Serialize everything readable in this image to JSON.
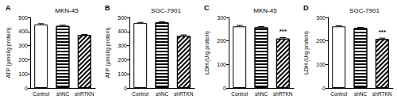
{
  "chart_data": [
    {
      "type": "bar",
      "panel_label": "A",
      "title": "MKN-45",
      "y_label": "ATP (μmol/g protein)",
      "categories": [
        "Control",
        "shNC",
        "shRTKN"
      ],
      "values": [
        450,
        440,
        375
      ],
      "errors": [
        6,
        5,
        4
      ],
      "colors": [
        "#ffffff",
        "#ffffff",
        "#ffffff"
      ],
      "ylim": [
        0,
        500
      ],
      "yticks": [
        0,
        100,
        200,
        300,
        400,
        500
      ],
      "grid": false
    },
    {
      "type": "bar",
      "panel_label": "B",
      "title": "SGC-7901",
      "y_label": "ATP (μmol/g protein)",
      "categories": [
        "Control",
        "shNC",
        "shRTKN"
      ],
      "values": [
        460,
        465,
        370
      ],
      "errors": [
        5,
        5,
        6
      ],
      "colors": [
        "#ffffff",
        "#ffffff",
        "#ffffff"
      ],
      "ylim": [
        0,
        500
      ],
      "yticks": [
        0,
        100,
        200,
        300,
        400,
        500
      ],
      "grid": false
    },
    {
      "type": "bar",
      "panel_label": "C",
      "title": "MKN-45",
      "y_label": "LDH (U/g protein)",
      "categories": [
        "Control",
        "shNC",
        "shRTKN"
      ],
      "values": [
        262,
        258,
        210
      ],
      "errors": [
        4,
        3,
        4
      ],
      "annotations": [
        null,
        null,
        "***"
      ],
      "colors": [
        "#ffffff",
        "#ffffff",
        "#ffffff"
      ],
      "ylim": [
        0,
        300
      ],
      "yticks": [
        0,
        100,
        200,
        300
      ],
      "grid": false
    },
    {
      "type": "bar",
      "panel_label": "D",
      "title": "SGC-7901",
      "y_label": "LDH (U/g protein)",
      "categories": [
        "Control",
        "shNC",
        "shRTKN"
      ],
      "values": [
        262,
        255,
        208
      ],
      "errors": [
        3,
        3,
        4
      ],
      "annotations": [
        null,
        null,
        "***"
      ],
      "colors": [
        "#ffffff",
        "#ffffff",
        "#ffffff"
      ],
      "ylim": [
        0,
        300
      ],
      "yticks": [
        0,
        100,
        200,
        300
      ],
      "grid": false
    }
  ]
}
